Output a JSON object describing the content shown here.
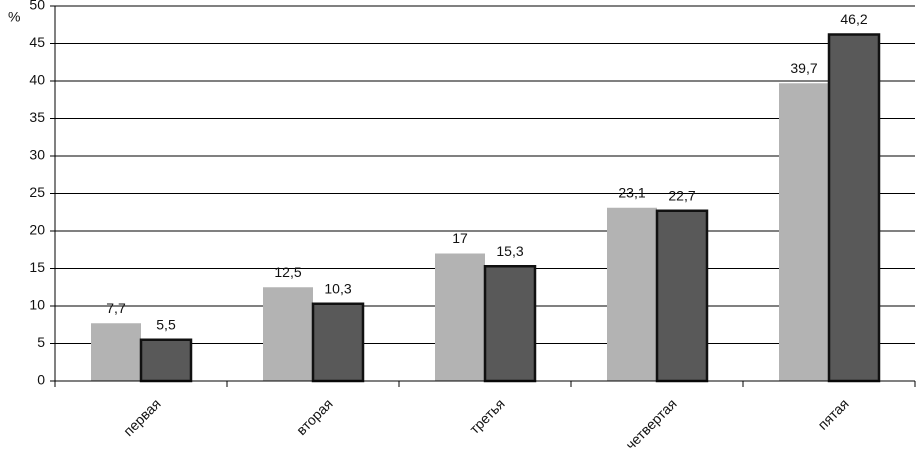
{
  "chart_data": {
    "type": "bar",
    "y_label": "%",
    "categories": [
      "первая",
      "вторая",
      "третья",
      "четвертая",
      "пятая"
    ],
    "series": [
      {
        "color": "#b3b3b3",
        "values": [
          7.7,
          12.5,
          17,
          23.1,
          39.7
        ],
        "value_labels": [
          "7,7",
          "12,5",
          "17",
          "23,1",
          "39,7"
        ]
      },
      {
        "color": "#595959",
        "values": [
          5.5,
          10.3,
          15.3,
          22.7,
          46.2
        ],
        "value_labels": [
          "5,5",
          "10,3",
          "15,3",
          "22,7",
          "46,2"
        ]
      }
    ],
    "ylim": [
      0,
      50
    ],
    "yticks": [
      0,
      5,
      10,
      15,
      20,
      25,
      30,
      35,
      40,
      45,
      50
    ],
    "grid": true
  }
}
